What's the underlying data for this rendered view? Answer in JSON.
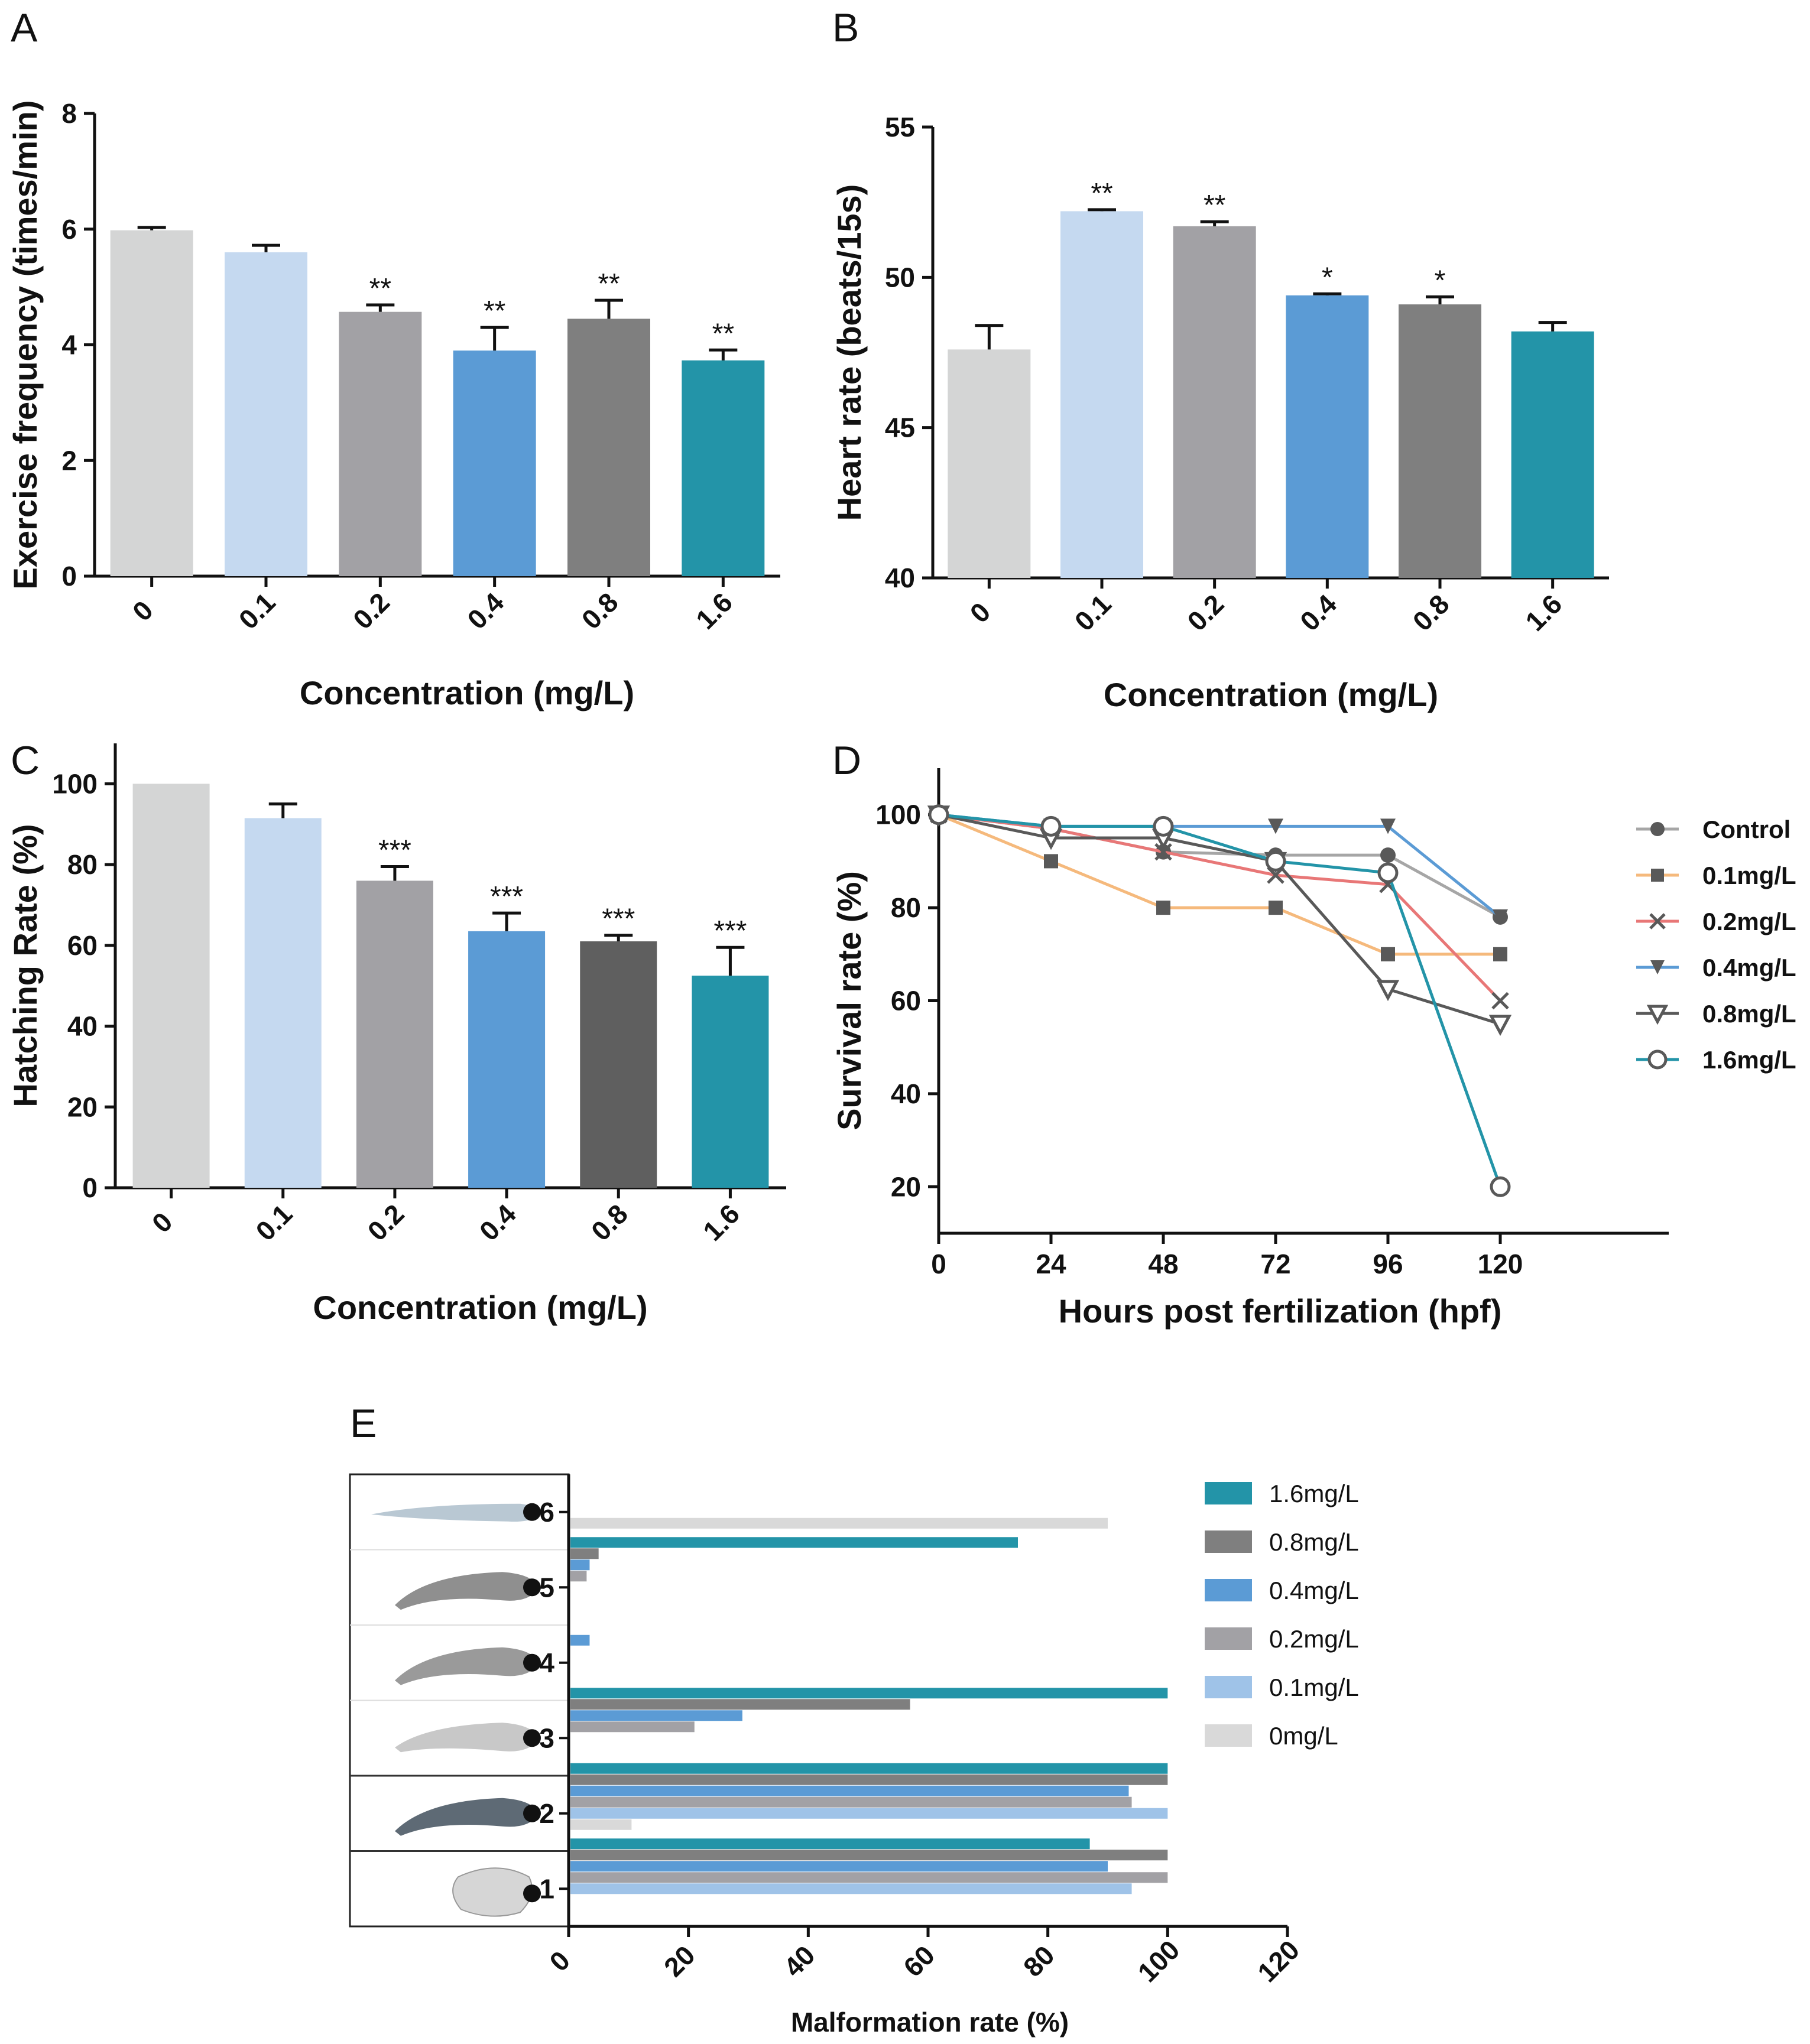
{
  "chart_data": [
    {
      "panel": "A",
      "type": "bar",
      "categories": [
        "0",
        "0.1",
        "0.2",
        "0.4",
        "0.8",
        "1.6"
      ],
      "values": [
        5.98,
        5.6,
        4.57,
        3.9,
        4.45,
        3.73
      ],
      "errors": [
        0.05,
        0.12,
        0.12,
        0.4,
        0.32,
        0.18
      ],
      "significance": [
        "",
        "",
        "**",
        "**",
        "**",
        "**"
      ],
      "colors": [
        "#d4d5d5",
        "#c5d9f0",
        "#a2a1a5",
        "#5b9bd5",
        "#7f7f7f",
        "#2394a8"
      ],
      "xlabel": "Concentration (mg/L)",
      "ylabel": "Exercise frequency (times/min)",
      "ylim": [
        0,
        8
      ],
      "yticks": [
        0,
        2,
        4,
        6,
        8
      ],
      "ytick_labels": [
        "0",
        "2",
        "4",
        "6",
        "8"
      ]
    },
    {
      "panel": "B",
      "type": "bar",
      "categories": [
        "0",
        "0.1",
        "0.2",
        "0.4",
        "0.8",
        "1.6"
      ],
      "values": [
        47.6,
        52.2,
        51.7,
        49.4,
        49.1,
        48.2
      ],
      "errors": [
        0.8,
        0.05,
        0.15,
        0.05,
        0.25,
        0.3
      ],
      "significance": [
        "",
        "**",
        "**",
        "*",
        "*",
        ""
      ],
      "colors": [
        "#d4d5d5",
        "#c5d9f0",
        "#a2a1a5",
        "#5b9bd5",
        "#7f7f7f",
        "#2394a8"
      ],
      "xlabel": "Concentration (mg/L)",
      "ylabel": "Heart rate (beats/15s)",
      "ylim": [
        40,
        55
      ],
      "yticks": [
        40,
        45,
        50,
        55
      ],
      "ytick_labels": [
        "40",
        "45",
        "50",
        "55"
      ]
    },
    {
      "panel": "C",
      "type": "bar",
      "categories": [
        "0",
        "0.1",
        "0.2",
        "0.4",
        "0.8",
        "1.6"
      ],
      "values": [
        100,
        91.5,
        76,
        63.5,
        61,
        52.5
      ],
      "errors": [
        0,
        3.5,
        3.5,
        4.5,
        1.5,
        7
      ],
      "significance": [
        "",
        "",
        "***",
        "***",
        "***",
        "***"
      ],
      "colors": [
        "#d4d5d5",
        "#c5d9f0",
        "#a2a1a5",
        "#5b9bd5",
        "#5f5f5f",
        "#2394a8"
      ],
      "xlabel": "Concentration (mg/L)",
      "ylabel": "Hatching Rate (%)",
      "ylim": [
        0,
        110
      ],
      "yticks": [
        0,
        20,
        40,
        60,
        80,
        100
      ],
      "ytick_labels": [
        "0",
        "20",
        "40",
        "60",
        "80",
        "100"
      ]
    },
    {
      "panel": "D",
      "type": "line",
      "x": [
        0,
        24,
        48,
        72,
        96,
        120
      ],
      "series": [
        {
          "name": "Control",
          "values": [
            100,
            97,
            92,
            91.3,
            91.3,
            78
          ],
          "color": "#a6a6a6",
          "marker": "circle"
        },
        {
          "name": "0.1mg/L",
          "values": [
            100,
            90,
            80,
            80,
            70,
            70
          ],
          "color": "#f5b97c",
          "marker": "square"
        },
        {
          "name": "0.2mg/L",
          "values": [
            100,
            97,
            92,
            87,
            85,
            60
          ],
          "color": "#e87777",
          "marker": "x"
        },
        {
          "name": "0.4mg/L",
          "values": [
            100,
            97.5,
            97.5,
            97.5,
            97.5,
            78
          ],
          "color": "#5b9bd5",
          "marker": "triangle-down"
        },
        {
          "name": "0.8mg/L",
          "values": [
            100,
            95,
            95,
            90,
            62.5,
            55
          ],
          "color": "#595959",
          "marker": "triangle-down-open"
        },
        {
          "name": "1.6mg/L",
          "values": [
            100,
            97.5,
            97.5,
            90,
            87.5,
            20
          ],
          "color": "#2394a8",
          "marker": "circle-open"
        }
      ],
      "xlabel": "Hours post fertilization (hpf)",
      "ylabel": "Survival rate (%)",
      "xlim": [
        0,
        156
      ],
      "ylim": [
        10,
        110
      ],
      "xticks": [
        0,
        24,
        48,
        72,
        96,
        120
      ],
      "xtick_labels": [
        "0",
        "24",
        "48",
        "72",
        "96",
        "120"
      ],
      "yticks": [
        20,
        40,
        60,
        80,
        100
      ],
      "ytick_labels": [
        "20",
        "40",
        "60",
        "80",
        "100"
      ],
      "legend_position": "right"
    },
    {
      "panel": "E",
      "type": "bar",
      "orientation": "horizontal",
      "categories": [
        "6",
        "5",
        "4",
        "3",
        "2",
        "1"
      ],
      "series": [
        {
          "name": "1.6mg/L",
          "color": "#2394a8",
          "values": [
            0,
            75,
            0,
            100,
            100,
            87
          ]
        },
        {
          "name": "0.8mg/L",
          "color": "#7f7f7f",
          "values": [
            0,
            5,
            0,
            57,
            100,
            100
          ]
        },
        {
          "name": "0.4mg/L",
          "color": "#5b9bd5",
          "values": [
            0,
            3.5,
            3.5,
            29,
            93.5,
            90
          ]
        },
        {
          "name": "0.2mg/L",
          "color": "#a2a1a5",
          "values": [
            0,
            3,
            0,
            21,
            94,
            100
          ]
        },
        {
          "name": "0.1mg/L",
          "color": "#9fc3e8",
          "values": [
            0,
            0,
            0,
            0,
            100,
            94
          ]
        },
        {
          "name": "0mg/L",
          "color": "#d9d9d9",
          "values": [
            90,
            0,
            0,
            0,
            10.5,
            0
          ]
        }
      ],
      "xlabel": "Malformation rate (%)",
      "xlim": [
        0,
        120
      ],
      "xticks": [
        0,
        20,
        40,
        60,
        80,
        100,
        120
      ],
      "xtick_labels": [
        "0",
        "20",
        "40",
        "60",
        "80",
        "100",
        "120"
      ],
      "legend_position": "top-right"
    }
  ]
}
